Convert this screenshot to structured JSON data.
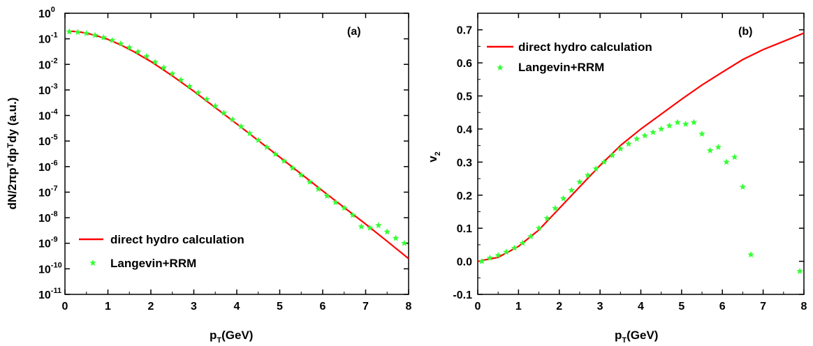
{
  "chart_data": [
    {
      "panel": "(a)",
      "type": "line",
      "xlabel_main": "p",
      "xlabel_sub": "T",
      "xlabel_rest": "(GeV)",
      "ylabel": "dN/2πpᵀdpᵀdy (a.u.)",
      "xlim": [
        0,
        8
      ],
      "ylim_log10": [
        -11,
        0
      ],
      "yscale": "log",
      "x_ticks": [
        "0",
        "1",
        "2",
        "3",
        "4",
        "5",
        "6",
        "7",
        "8"
      ],
      "y_tick_labels": [
        {
          "base": "10",
          "exp": "0"
        },
        {
          "base": "10",
          "exp": "-1"
        },
        {
          "base": "10",
          "exp": "-2"
        },
        {
          "base": "10",
          "exp": "-3"
        },
        {
          "base": "10",
          "exp": "-4"
        },
        {
          "base": "10",
          "exp": "-5"
        },
        {
          "base": "10",
          "exp": "-6"
        },
        {
          "base": "10",
          "exp": "-7"
        },
        {
          "base": "10",
          "exp": "-8"
        },
        {
          "base": "10",
          "exp": "-9"
        },
        {
          "base": "10",
          "exp": "-10"
        },
        {
          "base": "10",
          "exp": "-11"
        }
      ],
      "legend_position": "bottom-left",
      "series": [
        {
          "name": "direct hydro calculation",
          "color": "#ff0000",
          "style": "line",
          "x": [
            0.1,
            0.3,
            0.5,
            0.7,
            1.0,
            1.3,
            1.6,
            2.0,
            2.5,
            3.0,
            3.5,
            4.0,
            4.5,
            5.0,
            5.5,
            6.0,
            6.5,
            7.0,
            7.5,
            8.0
          ],
          "y_log10": [
            -0.7,
            -0.72,
            -0.78,
            -0.86,
            -1.02,
            -1.24,
            -1.5,
            -1.89,
            -2.45,
            -3.05,
            -3.69,
            -4.33,
            -4.98,
            -5.63,
            -6.29,
            -6.95,
            -7.6,
            -8.25,
            -8.92,
            -9.6
          ]
        },
        {
          "name": "Langevin+RRM",
          "color": "#33ff33",
          "style": "star",
          "x": [
            0.1,
            0.3,
            0.5,
            0.7,
            0.9,
            1.1,
            1.3,
            1.5,
            1.7,
            1.9,
            2.1,
            2.3,
            2.5,
            2.7,
            2.9,
            3.1,
            3.3,
            3.5,
            3.7,
            3.9,
            4.1,
            4.3,
            4.5,
            4.7,
            4.9,
            5.1,
            5.3,
            5.5,
            5.7,
            5.9,
            6.1,
            6.3,
            6.5,
            6.7,
            6.9,
            7.1,
            7.3,
            7.5,
            7.7,
            7.9
          ],
          "y_log10": [
            -0.72,
            -0.74,
            -0.79,
            -0.86,
            -0.95,
            -1.06,
            -1.19,
            -1.34,
            -1.51,
            -1.69,
            -1.91,
            -2.13,
            -2.37,
            -2.61,
            -2.86,
            -3.11,
            -3.37,
            -3.63,
            -3.9,
            -4.16,
            -4.43,
            -4.7,
            -4.97,
            -5.24,
            -5.51,
            -5.78,
            -6.06,
            -6.33,
            -6.6,
            -6.88,
            -7.15,
            -7.4,
            -7.62,
            -7.9,
            -8.35,
            -8.4,
            -8.3,
            -8.55,
            -8.8,
            -9.0
          ]
        }
      ]
    },
    {
      "panel": "(b)",
      "type": "line",
      "xlabel_main": "p",
      "xlabel_sub": "T",
      "xlabel_rest": "(GeV)",
      "ylabel_main": "v",
      "ylabel_sub": "2",
      "xlim": [
        0,
        8
      ],
      "ylim": [
        -0.1,
        0.75
      ],
      "x_ticks": [
        "0",
        "1",
        "2",
        "3",
        "4",
        "5",
        "6",
        "7",
        "8"
      ],
      "y_ticks": [
        "-0.1",
        "0.0",
        "0.1",
        "0.2",
        "0.3",
        "0.4",
        "0.5",
        "0.6",
        "0.7"
      ],
      "legend_position": "top-left",
      "series": [
        {
          "name": "direct hydro calculation",
          "color": "#ff0000",
          "style": "line",
          "x": [
            0,
            0.5,
            1.0,
            1.5,
            2.0,
            2.5,
            3.0,
            3.5,
            4.0,
            4.5,
            5.0,
            5.5,
            6.0,
            6.5,
            7.0,
            7.5,
            8.0
          ],
          "y": [
            0.0,
            0.012,
            0.045,
            0.095,
            0.16,
            0.225,
            0.29,
            0.35,
            0.4,
            0.445,
            0.49,
            0.533,
            0.572,
            0.61,
            0.64,
            0.665,
            0.69
          ]
        },
        {
          "name": "Langevin+RRM",
          "color": "#33ff33",
          "style": "star",
          "x": [
            0.1,
            0.3,
            0.5,
            0.7,
            0.9,
            1.1,
            1.3,
            1.5,
            1.7,
            1.9,
            2.1,
            2.3,
            2.5,
            2.7,
            2.9,
            3.1,
            3.3,
            3.5,
            3.7,
            3.9,
            4.1,
            4.3,
            4.5,
            4.7,
            4.9,
            5.1,
            5.3,
            5.5,
            5.7,
            5.9,
            6.1,
            6.3,
            6.5,
            6.7,
            7.9
          ],
          "y": [
            0.0,
            0.01,
            0.018,
            0.028,
            0.04,
            0.055,
            0.075,
            0.1,
            0.13,
            0.16,
            0.19,
            0.215,
            0.24,
            0.26,
            0.28,
            0.3,
            0.32,
            0.34,
            0.355,
            0.37,
            0.38,
            0.39,
            0.4,
            0.41,
            0.42,
            0.415,
            0.42,
            0.385,
            0.335,
            0.345,
            0.3,
            0.315,
            0.225,
            0.02,
            -0.03
          ]
        }
      ]
    }
  ]
}
